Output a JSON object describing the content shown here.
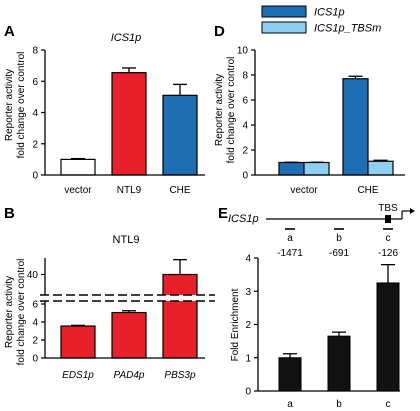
{
  "panels": [
    {
      "id": "A",
      "label": "A"
    },
    {
      "id": "B",
      "label": "B"
    },
    {
      "id": "D",
      "label": "D"
    },
    {
      "id": "E",
      "label": "E"
    }
  ],
  "chart_data": [
    {
      "panel": "A",
      "type": "bar",
      "title": "ICS1p",
      "ylabel": [
        "Reporter activity",
        "fold change over control"
      ],
      "categories": [
        "vector",
        "NTL9",
        "CHE"
      ],
      "values": [
        1.0,
        6.55,
        5.1
      ],
      "errors": [
        0.05,
        0.3,
        0.7
      ],
      "colors": [
        "#ffffff",
        "#e8202a",
        "#1f6db3"
      ],
      "ylim": [
        0,
        8
      ],
      "yticks": [
        "0",
        "2",
        "4",
        "6",
        "8"
      ],
      "grid": false
    },
    {
      "panel": "B",
      "type": "bar",
      "title": "NTL9",
      "ylabel": [
        "Reporter activity",
        "fold change over control"
      ],
      "categories": [
        "EDS1p",
        "PAD4p",
        "PBS3p"
      ],
      "values": [
        3.55,
        5.05,
        40
      ],
      "errors": [
        0.08,
        0.2,
        4.5
      ],
      "color": "#e8202a",
      "ylim_lower": [
        0,
        6.5
      ],
      "ylim_upper": [
        30,
        45
      ],
      "yticks_lower": [
        "0",
        "2",
        "4",
        "6"
      ],
      "yticks_upper": [
        "40"
      ],
      "axis_break": true,
      "grid": false
    },
    {
      "panel": "D",
      "type": "bar",
      "ylabel": [
        "Reporter activity",
        "fold change over control"
      ],
      "categories": [
        "vector",
        "CHE"
      ],
      "series": [
        {
          "name": "ICS1p",
          "values": [
            1.0,
            7.7
          ],
          "errors": [
            0.02,
            0.2
          ],
          "color": "#1f6db3"
        },
        {
          "name": "ICS1p_TBSm",
          "values": [
            1.0,
            1.1
          ],
          "errors": [
            0.02,
            0.08
          ],
          "color": "#8fd0f2"
        }
      ],
      "legend": "top",
      "ylim": [
        0,
        10
      ],
      "yticks": [
        "0",
        "2",
        "4",
        "6",
        "8",
        "10"
      ],
      "grid": false
    },
    {
      "panel": "E",
      "type": "bar",
      "ylabel": [
        "Fold Enrichment"
      ],
      "categories": [
        "a",
        "b",
        "c"
      ],
      "values": [
        1.0,
        1.65,
        3.25
      ],
      "errors": [
        0.12,
        0.12,
        0.55
      ],
      "color": "#111111",
      "ylim": [
        0,
        4
      ],
      "yticks": [
        "0",
        "1",
        "2",
        "3",
        "4"
      ],
      "grid": false
    }
  ],
  "promoter": {
    "name": "ICS1p",
    "tbs_label": "TBS",
    "sites": [
      {
        "label": "a",
        "position": "-1471"
      },
      {
        "label": "b",
        "position": "-691"
      },
      {
        "label": "c",
        "position": "-126"
      }
    ]
  }
}
